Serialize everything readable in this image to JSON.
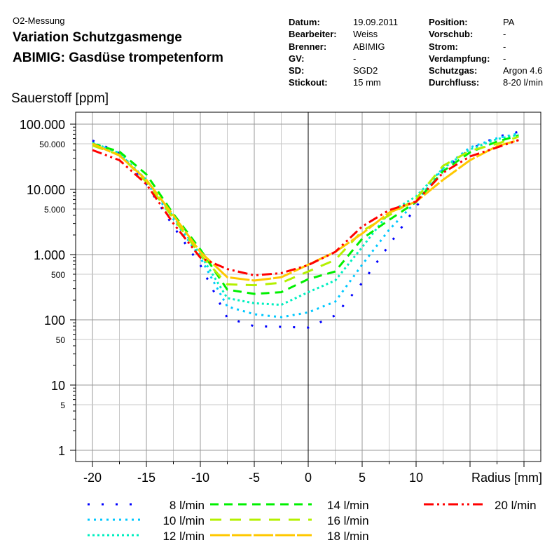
{
  "header": {
    "subtitle": "O2-Messung",
    "title_line1": "Variation Schutzgasmenge",
    "title_line2": "ABIMIG: Gasdüse trompetenform"
  },
  "meta_left": [
    {
      "key": "Datum:",
      "value": "19.09.2011"
    },
    {
      "key": "Bearbeiter:",
      "value": "Weiss"
    },
    {
      "key": "Brenner:",
      "value": "ABIMIG"
    },
    {
      "key": "GV:",
      "value": "-"
    },
    {
      "key": "SD:",
      "value": "SGD2"
    },
    {
      "key": "Stickout:",
      "value": "15 mm"
    }
  ],
  "meta_right": [
    {
      "key": "Position:",
      "value": "PA"
    },
    {
      "key": "Vorschub:",
      "value": "-"
    },
    {
      "key": "Strom:",
      "value": "-"
    },
    {
      "key": "Verdampfung:",
      "value": "-"
    },
    {
      "key": "Schutzgas:",
      "value": "Argon 4.6"
    },
    {
      "key": "Durchfluss:",
      "value": "8-20 l/min"
    }
  ],
  "chart_data": {
    "type": "line",
    "ylabel": "Sauerstoff [ppm]",
    "xlabel": "Radius [mm]",
    "yscale": "log",
    "grid": true,
    "legend_position": "bottom",
    "xlim": [
      -21.5,
      21.5
    ],
    "ylim": [
      0.68,
      150000
    ],
    "x_ticks": [
      "-20",
      "-15",
      "-10",
      "-5",
      "0",
      "5",
      "10"
    ],
    "x_tick_values": [
      -20,
      -15,
      -10,
      -5,
      0,
      5,
      10
    ],
    "y_ticks_major": [
      {
        "v": 100000,
        "label": "100.000"
      },
      {
        "v": 10000,
        "label": "10.000"
      },
      {
        "v": 1000,
        "label": "1.000"
      },
      {
        "v": 100,
        "label": "100"
      },
      {
        "v": 10,
        "label": "10"
      },
      {
        "v": 1,
        "label": "1"
      }
    ],
    "y_ticks_minor": [
      {
        "v": 50000,
        "label": "50.000"
      },
      {
        "v": 5000,
        "label": "5.000"
      },
      {
        "v": 500,
        "label": "500"
      },
      {
        "v": 50,
        "label": "50"
      },
      {
        "v": 5,
        "label": "5"
      }
    ],
    "x": [
      -20,
      -17.5,
      -15,
      -12.5,
      -10,
      -7.5,
      -5,
      -2.5,
      0,
      2.5,
      5,
      7.5,
      10,
      12.5,
      15,
      17.5,
      19.5
    ],
    "series": [
      {
        "name": "8 l/min",
        "color": "#0000ff",
        "dash": "3 17",
        "values": [
          56000,
          36000,
          12000,
          2700,
          690,
          107,
          80,
          78,
          76,
          117,
          370,
          1400,
          5400,
          20000,
          41000,
          64000,
          76000
        ]
      },
      {
        "name": "10 l/min",
        "color": "#00c8ff",
        "dash": "3 6",
        "values": [
          52000,
          36000,
          13000,
          3500,
          900,
          160,
          122,
          110,
          130,
          190,
          700,
          2400,
          6500,
          21000,
          44000,
          61000,
          72000
        ]
      },
      {
        "name": "12 l/min",
        "color": "#00f0c0",
        "dash": "3 4",
        "values": [
          52000,
          36000,
          14000,
          3800,
          1000,
          215,
          180,
          170,
          265,
          400,
          1300,
          4400,
          7800,
          21000,
          41000,
          59000,
          69000
        ]
      },
      {
        "name": "14 l/min",
        "color": "#00f000",
        "dash": "12 8",
        "values": [
          50000,
          38000,
          17000,
          4200,
          1200,
          290,
          250,
          265,
          420,
          550,
          1750,
          3400,
          6400,
          19000,
          37000,
          54000,
          67000
        ]
      },
      {
        "name": "16 l/min",
        "color": "#b4f000",
        "dash": "16 12",
        "values": [
          47000,
          34000,
          13000,
          3600,
          1000,
          350,
          340,
          370,
          550,
          830,
          2300,
          4000,
          7200,
          23000,
          39000,
          50000,
          64000
        ]
      },
      {
        "name": "18 l/min",
        "color": "#ffc800",
        "dash": "28 3",
        "values": [
          50000,
          33000,
          14000,
          4000,
          1100,
          450,
          400,
          450,
          700,
          1100,
          2100,
          4400,
          6500,
          14000,
          28000,
          46000,
          57000
        ]
      },
      {
        "name": "20 l/min",
        "color": "#ff0000",
        "dash": "14 5 3 5 3 5",
        "values": [
          40000,
          28000,
          12000,
          3000,
          900,
          600,
          480,
          520,
          690,
          1100,
          2700,
          4800,
          6500,
          18000,
          32000,
          44000,
          57000
        ]
      }
    ]
  }
}
